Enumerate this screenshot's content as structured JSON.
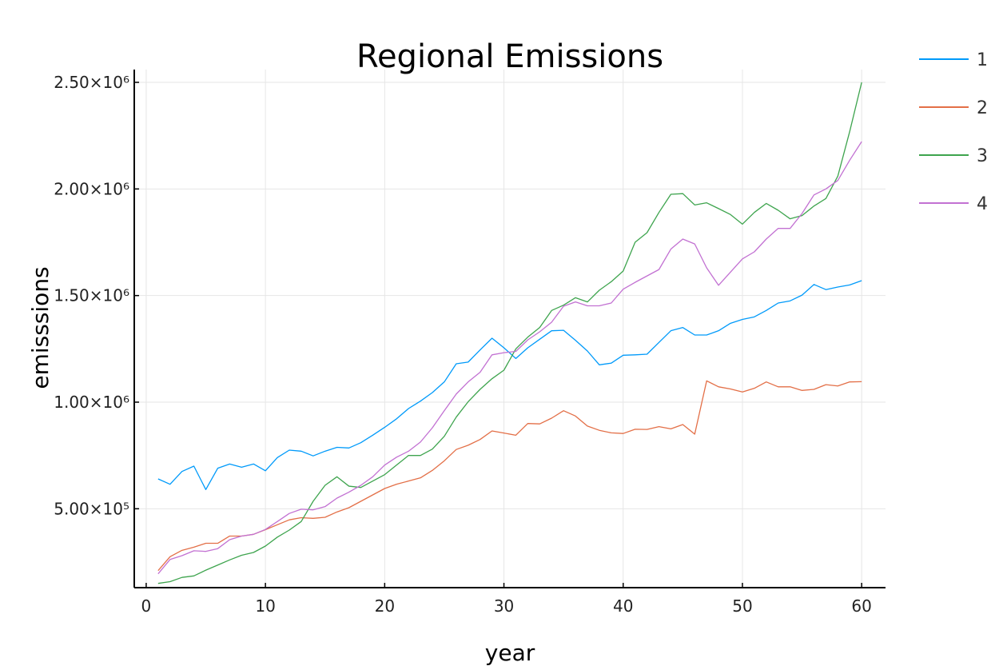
{
  "chart_data": {
    "type": "line",
    "title": "Regional Emissions",
    "xlabel": "year",
    "ylabel": "emisssions",
    "xlim": [
      -1,
      62
    ],
    "ylim": [
      130000,
      2560000
    ],
    "x_ticks": [
      0,
      10,
      20,
      30,
      40,
      50,
      60
    ],
    "x_tick_labels": [
      "0",
      "10",
      "20",
      "30",
      "40",
      "50",
      "60"
    ],
    "y_ticks": [
      500000,
      1000000,
      1500000,
      2000000,
      2500000
    ],
    "y_tick_labels": [
      "5.00×10⁵",
      "1.00×10⁶",
      "1.50×10⁶",
      "2.00×10⁶",
      "2.50×10⁶"
    ],
    "grid": true,
    "legend_position": "outer-right-top",
    "x": [
      1,
      2,
      3,
      4,
      5,
      6,
      7,
      8,
      9,
      10,
      11,
      12,
      13,
      14,
      15,
      16,
      17,
      18,
      19,
      20,
      21,
      22,
      23,
      24,
      25,
      26,
      27,
      28,
      29,
      30,
      31,
      32,
      33,
      34,
      35,
      36,
      37,
      38,
      39,
      40,
      41,
      42,
      43,
      44,
      45,
      46,
      47,
      48,
      49,
      50,
      51,
      52,
      53,
      54,
      55,
      56,
      57,
      58,
      59,
      60
    ],
    "series": [
      {
        "name": "1",
        "color": "#009AFA",
        "values": [
          640000,
          615000,
          675000,
          700000,
          590000,
          690000,
          710000,
          695000,
          710000,
          678000,
          740000,
          775000,
          770000,
          748000,
          770000,
          788000,
          785000,
          810000,
          845000,
          882000,
          922000,
          970000,
          1005000,
          1045000,
          1095000,
          1180000,
          1188000,
          1245000,
          1300000,
          1255000,
          1205000,
          1255000,
          1295000,
          1335000,
          1337000,
          1290000,
          1240000,
          1175000,
          1183000,
          1220000,
          1222000,
          1225000,
          1280000,
          1335000,
          1350000,
          1315000,
          1315000,
          1335000,
          1370000,
          1388000,
          1400000,
          1430000,
          1465000,
          1475000,
          1502000,
          1552000,
          1528000,
          1540000,
          1550000,
          1570000
        ]
      },
      {
        "name": "2",
        "color": "#E36F47",
        "values": [
          210000,
          275000,
          305000,
          320000,
          338000,
          338000,
          372000,
          372000,
          380000,
          402000,
          425000,
          448000,
          458000,
          455000,
          460000,
          485000,
          505000,
          535000,
          565000,
          595000,
          615000,
          630000,
          645000,
          680000,
          725000,
          778000,
          798000,
          825000,
          865000,
          855000,
          845000,
          900000,
          898000,
          925000,
          960000,
          935000,
          888000,
          868000,
          856000,
          853000,
          873000,
          872000,
          885000,
          875000,
          895000,
          850000,
          1100000,
          1072000,
          1062000,
          1048000,
          1065000,
          1095000,
          1072000,
          1072000,
          1055000,
          1060000,
          1082000,
          1076000,
          1095000,
          1096000
        ]
      },
      {
        "name": "3",
        "color": "#3EA44E",
        "values": [
          150000,
          158000,
          178000,
          185000,
          212000,
          236000,
          260000,
          282000,
          295000,
          325000,
          367000,
          400000,
          440000,
          535000,
          610000,
          650000,
          606000,
          600000,
          630000,
          660000,
          705000,
          750000,
          750000,
          780000,
          840000,
          930000,
          1002000,
          1060000,
          1110000,
          1150000,
          1250000,
          1305000,
          1350000,
          1430000,
          1455000,
          1490000,
          1470000,
          1525000,
          1565000,
          1615000,
          1750000,
          1795000,
          1890000,
          1975000,
          1978000,
          1925000,
          1935000,
          1908000,
          1880000,
          1835000,
          1890000,
          1932000,
          1900000,
          1860000,
          1875000,
          1920000,
          1955000,
          2060000,
          2270000,
          2500000
        ]
      },
      {
        "name": "4",
        "color": "#C271D2",
        "values": [
          195000,
          262000,
          280000,
          303000,
          300000,
          313000,
          355000,
          372000,
          380000,
          403000,
          440000,
          478000,
          498000,
          495000,
          510000,
          550000,
          578000,
          610000,
          650000,
          705000,
          742000,
          770000,
          813000,
          880000,
          960000,
          1038000,
          1095000,
          1140000,
          1222000,
          1232000,
          1238000,
          1292000,
          1330000,
          1375000,
          1450000,
          1470000,
          1452000,
          1452000,
          1465000,
          1530000,
          1562000,
          1592000,
          1622000,
          1718000,
          1765000,
          1742000,
          1630000,
          1548000,
          1610000,
          1672000,
          1705000,
          1765000,
          1815000,
          1815000,
          1885000,
          1972000,
          2000000,
          2040000,
          2135000,
          2222000
        ]
      }
    ]
  }
}
